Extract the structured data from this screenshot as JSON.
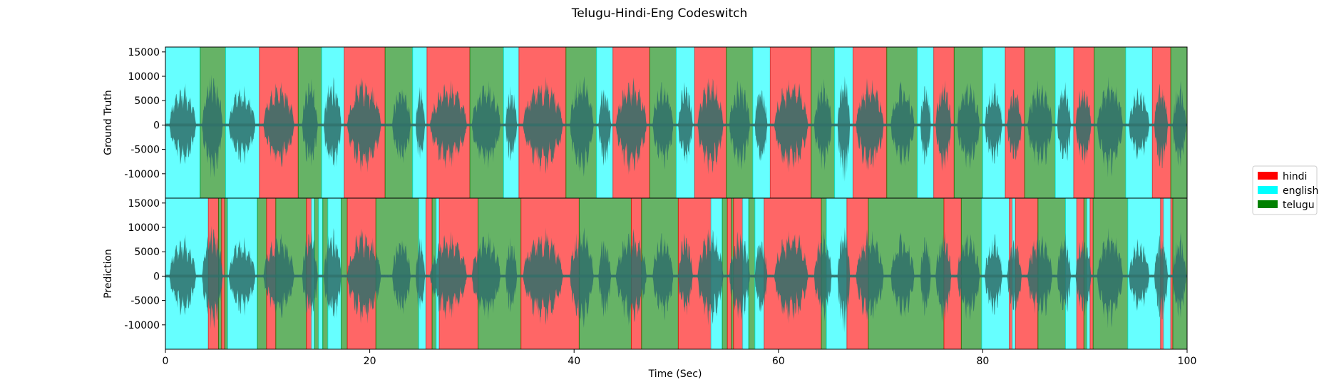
{
  "chart_data": {
    "type": "area",
    "title": "Telugu-Hindi-Eng Codeswitch",
    "xlabel": "Time (Sec)",
    "xlim": [
      0,
      100
    ],
    "xticks": [
      0,
      20,
      40,
      60,
      80,
      100
    ],
    "colors": {
      "hindi": "#ff0000",
      "english": "#00ffff",
      "telugu": "#008000",
      "waveform": "#2f6f6a"
    },
    "legend": {
      "position": "right",
      "entries": [
        "hindi",
        "english",
        "telugu"
      ]
    },
    "panels": [
      {
        "ylabel": "Ground Truth",
        "ylim": [
          -15000,
          16000
        ],
        "yticks": [
          15000,
          10000,
          5000,
          0,
          -5000,
          -10000
        ],
        "segments": [
          {
            "start": 0.0,
            "end": 3.4,
            "lang": "english"
          },
          {
            "start": 3.4,
            "end": 5.9,
            "lang": "telugu"
          },
          {
            "start": 5.9,
            "end": 9.2,
            "lang": "english"
          },
          {
            "start": 9.2,
            "end": 13.0,
            "lang": "hindi"
          },
          {
            "start": 13.0,
            "end": 15.3,
            "lang": "telugu"
          },
          {
            "start": 15.3,
            "end": 17.5,
            "lang": "english"
          },
          {
            "start": 17.5,
            "end": 21.5,
            "lang": "hindi"
          },
          {
            "start": 21.5,
            "end": 24.2,
            "lang": "telugu"
          },
          {
            "start": 24.2,
            "end": 25.6,
            "lang": "english"
          },
          {
            "start": 25.6,
            "end": 29.8,
            "lang": "hindi"
          },
          {
            "start": 29.8,
            "end": 33.1,
            "lang": "telugu"
          },
          {
            "start": 33.1,
            "end": 34.6,
            "lang": "english"
          },
          {
            "start": 34.6,
            "end": 39.2,
            "lang": "hindi"
          },
          {
            "start": 39.2,
            "end": 42.2,
            "lang": "telugu"
          },
          {
            "start": 42.2,
            "end": 43.8,
            "lang": "english"
          },
          {
            "start": 43.8,
            "end": 47.4,
            "lang": "hindi"
          },
          {
            "start": 47.4,
            "end": 50.0,
            "lang": "telugu"
          },
          {
            "start": 50.0,
            "end": 51.8,
            "lang": "english"
          },
          {
            "start": 51.8,
            "end": 54.9,
            "lang": "hindi"
          },
          {
            "start": 54.9,
            "end": 57.5,
            "lang": "telugu"
          },
          {
            "start": 57.5,
            "end": 59.2,
            "lang": "english"
          },
          {
            "start": 59.2,
            "end": 63.2,
            "lang": "hindi"
          },
          {
            "start": 63.2,
            "end": 65.5,
            "lang": "telugu"
          },
          {
            "start": 65.5,
            "end": 67.3,
            "lang": "english"
          },
          {
            "start": 67.3,
            "end": 70.6,
            "lang": "hindi"
          },
          {
            "start": 70.6,
            "end": 73.6,
            "lang": "telugu"
          },
          {
            "start": 73.6,
            "end": 75.2,
            "lang": "english"
          },
          {
            "start": 75.2,
            "end": 77.2,
            "lang": "hindi"
          },
          {
            "start": 77.2,
            "end": 80.0,
            "lang": "telugu"
          },
          {
            "start": 80.0,
            "end": 82.2,
            "lang": "english"
          },
          {
            "start": 82.2,
            "end": 84.1,
            "lang": "hindi"
          },
          {
            "start": 84.1,
            "end": 87.1,
            "lang": "telugu"
          },
          {
            "start": 87.1,
            "end": 88.9,
            "lang": "english"
          },
          {
            "start": 88.9,
            "end": 90.9,
            "lang": "hindi"
          },
          {
            "start": 90.9,
            "end": 94.0,
            "lang": "telugu"
          },
          {
            "start": 94.0,
            "end": 96.6,
            "lang": "english"
          },
          {
            "start": 96.6,
            "end": 98.4,
            "lang": "hindi"
          },
          {
            "start": 98.4,
            "end": 100.0,
            "lang": "telugu"
          }
        ]
      },
      {
        "ylabel": "Prediction",
        "ylim": [
          -15000,
          16000
        ],
        "yticks": [
          15000,
          10000,
          5000,
          0,
          -5000,
          -10000
        ],
        "segments": [
          {
            "start": 0.0,
            "end": 4.2,
            "lang": "english"
          },
          {
            "start": 4.2,
            "end": 5.2,
            "lang": "hindi"
          },
          {
            "start": 5.2,
            "end": 5.5,
            "lang": "telugu"
          },
          {
            "start": 5.5,
            "end": 5.8,
            "lang": "hindi"
          },
          {
            "start": 5.8,
            "end": 6.1,
            "lang": "telugu"
          },
          {
            "start": 6.1,
            "end": 9.0,
            "lang": "english"
          },
          {
            "start": 9.0,
            "end": 9.9,
            "lang": "telugu"
          },
          {
            "start": 9.9,
            "end": 10.8,
            "lang": "hindi"
          },
          {
            "start": 10.8,
            "end": 13.8,
            "lang": "telugu"
          },
          {
            "start": 13.8,
            "end": 14.3,
            "lang": "hindi"
          },
          {
            "start": 14.3,
            "end": 14.6,
            "lang": "english"
          },
          {
            "start": 14.6,
            "end": 15.0,
            "lang": "telugu"
          },
          {
            "start": 15.0,
            "end": 15.4,
            "lang": "english"
          },
          {
            "start": 15.4,
            "end": 15.9,
            "lang": "telugu"
          },
          {
            "start": 15.9,
            "end": 17.2,
            "lang": "english"
          },
          {
            "start": 17.2,
            "end": 17.8,
            "lang": "telugu"
          },
          {
            "start": 17.8,
            "end": 20.6,
            "lang": "hindi"
          },
          {
            "start": 20.6,
            "end": 24.8,
            "lang": "telugu"
          },
          {
            "start": 24.8,
            "end": 25.5,
            "lang": "english"
          },
          {
            "start": 25.5,
            "end": 26.1,
            "lang": "hindi"
          },
          {
            "start": 26.1,
            "end": 26.5,
            "lang": "telugu"
          },
          {
            "start": 26.5,
            "end": 26.8,
            "lang": "english"
          },
          {
            "start": 26.8,
            "end": 30.6,
            "lang": "hindi"
          },
          {
            "start": 30.6,
            "end": 34.8,
            "lang": "telugu"
          },
          {
            "start": 34.8,
            "end": 40.5,
            "lang": "hindi"
          },
          {
            "start": 40.5,
            "end": 45.6,
            "lang": "telugu"
          },
          {
            "start": 45.6,
            "end": 46.6,
            "lang": "hindi"
          },
          {
            "start": 46.6,
            "end": 50.2,
            "lang": "telugu"
          },
          {
            "start": 50.2,
            "end": 53.4,
            "lang": "hindi"
          },
          {
            "start": 53.4,
            "end": 54.5,
            "lang": "english"
          },
          {
            "start": 54.5,
            "end": 55.0,
            "lang": "telugu"
          },
          {
            "start": 55.0,
            "end": 55.4,
            "lang": "hindi"
          },
          {
            "start": 55.4,
            "end": 55.6,
            "lang": "telugu"
          },
          {
            "start": 55.6,
            "end": 56.5,
            "lang": "hindi"
          },
          {
            "start": 56.5,
            "end": 57.1,
            "lang": "english"
          },
          {
            "start": 57.1,
            "end": 57.7,
            "lang": "telugu"
          },
          {
            "start": 57.7,
            "end": 58.6,
            "lang": "english"
          },
          {
            "start": 58.6,
            "end": 64.2,
            "lang": "hindi"
          },
          {
            "start": 64.2,
            "end": 64.7,
            "lang": "telugu"
          },
          {
            "start": 64.7,
            "end": 66.7,
            "lang": "english"
          },
          {
            "start": 66.7,
            "end": 68.8,
            "lang": "hindi"
          },
          {
            "start": 68.8,
            "end": 76.2,
            "lang": "telugu"
          },
          {
            "start": 76.2,
            "end": 77.9,
            "lang": "hindi"
          },
          {
            "start": 77.9,
            "end": 79.9,
            "lang": "telugu"
          },
          {
            "start": 79.9,
            "end": 82.6,
            "lang": "english"
          },
          {
            "start": 82.6,
            "end": 82.9,
            "lang": "hindi"
          },
          {
            "start": 82.9,
            "end": 83.2,
            "lang": "english"
          },
          {
            "start": 83.2,
            "end": 85.4,
            "lang": "hindi"
          },
          {
            "start": 85.4,
            "end": 88.1,
            "lang": "telugu"
          },
          {
            "start": 88.1,
            "end": 89.2,
            "lang": "english"
          },
          {
            "start": 89.2,
            "end": 89.9,
            "lang": "hindi"
          },
          {
            "start": 89.9,
            "end": 90.2,
            "lang": "telugu"
          },
          {
            "start": 90.2,
            "end": 90.5,
            "lang": "english"
          },
          {
            "start": 90.5,
            "end": 90.8,
            "lang": "hindi"
          },
          {
            "start": 90.8,
            "end": 94.2,
            "lang": "telugu"
          },
          {
            "start": 94.2,
            "end": 97.4,
            "lang": "english"
          },
          {
            "start": 97.4,
            "end": 97.7,
            "lang": "hindi"
          },
          {
            "start": 97.7,
            "end": 98.4,
            "lang": "english"
          },
          {
            "start": 98.4,
            "end": 98.6,
            "lang": "hindi"
          },
          {
            "start": 98.6,
            "end": 100.0,
            "lang": "telugu"
          }
        ]
      }
    ],
    "waveform_bursts": [
      {
        "start": 0.4,
        "end": 3.0,
        "amp": 9000
      },
      {
        "start": 3.6,
        "end": 5.6,
        "amp": 11500
      },
      {
        "start": 6.2,
        "end": 8.8,
        "amp": 8800
      },
      {
        "start": 9.6,
        "end": 12.6,
        "amp": 9500
      },
      {
        "start": 13.4,
        "end": 14.9,
        "amp": 10000
      },
      {
        "start": 15.5,
        "end": 17.2,
        "amp": 11000
      },
      {
        "start": 17.8,
        "end": 21.1,
        "amp": 10500
      },
      {
        "start": 22.2,
        "end": 24.0,
        "amp": 9000
      },
      {
        "start": 24.5,
        "end": 25.4,
        "amp": 8500
      },
      {
        "start": 25.9,
        "end": 29.5,
        "amp": 9500
      },
      {
        "start": 30.0,
        "end": 32.8,
        "amp": 10000
      },
      {
        "start": 33.3,
        "end": 34.4,
        "amp": 8500
      },
      {
        "start": 35.0,
        "end": 38.9,
        "amp": 10500
      },
      {
        "start": 39.6,
        "end": 41.9,
        "amp": 11500
      },
      {
        "start": 42.4,
        "end": 43.6,
        "amp": 9000
      },
      {
        "start": 44.1,
        "end": 47.1,
        "amp": 10500
      },
      {
        "start": 47.7,
        "end": 49.7,
        "amp": 9500
      },
      {
        "start": 50.2,
        "end": 51.6,
        "amp": 9000
      },
      {
        "start": 52.1,
        "end": 54.6,
        "amp": 10500
      },
      {
        "start": 55.2,
        "end": 57.2,
        "amp": 10000
      },
      {
        "start": 57.7,
        "end": 58.9,
        "amp": 9000
      },
      {
        "start": 59.6,
        "end": 62.9,
        "amp": 10500
      },
      {
        "start": 63.5,
        "end": 65.2,
        "amp": 10000
      },
      {
        "start": 65.8,
        "end": 67.0,
        "amp": 12500
      },
      {
        "start": 67.6,
        "end": 70.3,
        "amp": 10500
      },
      {
        "start": 71.0,
        "end": 73.3,
        "amp": 9500
      },
      {
        "start": 73.9,
        "end": 74.9,
        "amp": 9000
      },
      {
        "start": 75.4,
        "end": 76.9,
        "amp": 10000
      },
      {
        "start": 77.5,
        "end": 79.7,
        "amp": 10000
      },
      {
        "start": 80.2,
        "end": 81.9,
        "amp": 9000
      },
      {
        "start": 82.4,
        "end": 83.8,
        "amp": 8500
      },
      {
        "start": 84.4,
        "end": 86.8,
        "amp": 10000
      },
      {
        "start": 87.3,
        "end": 88.6,
        "amp": 9500
      },
      {
        "start": 89.1,
        "end": 90.6,
        "amp": 9500
      },
      {
        "start": 91.2,
        "end": 93.7,
        "amp": 11000
      },
      {
        "start": 94.3,
        "end": 96.3,
        "amp": 8000
      },
      {
        "start": 96.8,
        "end": 98.1,
        "amp": 10000
      },
      {
        "start": 98.6,
        "end": 99.9,
        "amp": 9500
      }
    ]
  }
}
